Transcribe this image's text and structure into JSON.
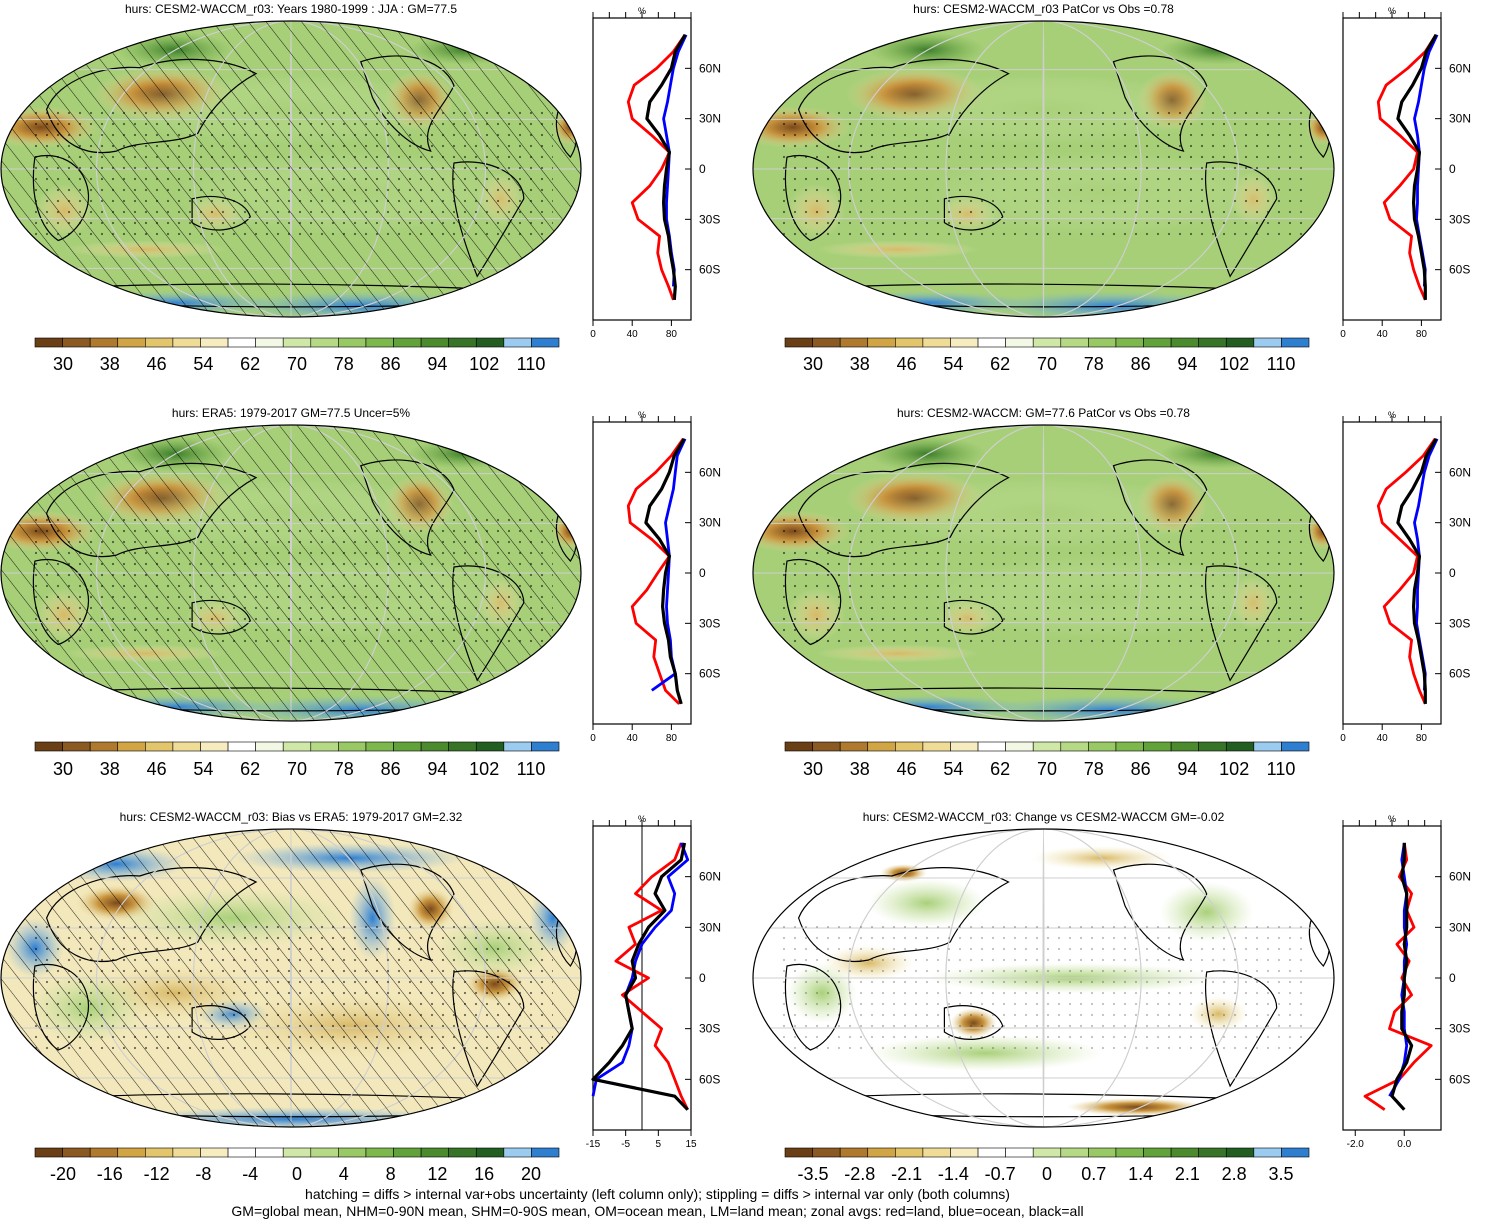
{
  "figure": {
    "variable": "hurs",
    "footnote_lines": [
      "hatching = diffs > internal var+obs uncertainty (left column only); stippling = diffs > internal var only (both columns)",
      "GM=global mean, NHM=0-90N mean, SHM=0-90S mean, OM=ocean mean, LM=land mean; zonal avgs: red=land, blue=ocean, black=all"
    ]
  },
  "colors": {
    "land": "#ff0000",
    "ocean": "#0000ff",
    "all": "#000000"
  },
  "chart_data": [
    {
      "type": "map",
      "title": "hurs: CESM2-WACCM_r03: Years 1980-1999 : JJA : GM=77.5",
      "hatching": true,
      "colorbar": {
        "labels": [
          "30",
          "38",
          "46",
          "54",
          "62",
          "70",
          "78",
          "86",
          "94",
          "102",
          "110"
        ],
        "palette": "abs"
      },
      "zonal": {
        "type": "line",
        "unit_label": "%",
        "xlim": [
          0,
          100
        ],
        "xticks": [
          0,
          40,
          80
        ],
        "xtick_labels": [
          "0",
          "40",
          "80"
        ],
        "ylim": [
          -90,
          90
        ],
        "ytick_labels": [
          "60N",
          "30N",
          "0",
          "30S",
          "60S"
        ],
        "lat": [
          80,
          70,
          60,
          50,
          40,
          30,
          20,
          10,
          0,
          -10,
          -20,
          -30,
          -40,
          -50,
          -60,
          -70,
          -78
        ],
        "series": [
          {
            "name": "land",
            "values": [
              94,
              82,
              65,
              42,
              36,
              40,
              60,
              78,
              70,
              58,
              40,
              46,
              68,
              66,
              70,
              77,
              82
            ]
          },
          {
            "name": "ocean",
            "values": [
              95,
              87,
              82,
              79,
              76,
              72,
              75,
              78,
              77,
              76,
              75,
              75,
              78,
              80,
              83,
              82,
              null
            ]
          },
          {
            "name": "all",
            "values": [
              94,
              84,
              80,
              70,
              58,
              55,
              68,
              78,
              75,
              73,
              72,
              73,
              77,
              79,
              82,
              84,
              83
            ]
          }
        ]
      }
    },
    {
      "type": "map",
      "title": "hurs: CESM2-WACCM_r03 PatCor vs Obs =0.78",
      "hatching": false,
      "colorbar": {
        "labels": [
          "30",
          "38",
          "46",
          "54",
          "62",
          "70",
          "78",
          "86",
          "94",
          "102",
          "110"
        ],
        "palette": "abs"
      },
      "zonal": {
        "type": "line",
        "unit_label": "%",
        "xlim": [
          0,
          100
        ],
        "xticks": [
          0,
          40,
          80
        ],
        "xtick_labels": [
          "0",
          "40",
          "80"
        ],
        "ylim": [
          -90,
          90
        ],
        "ytick_labels": [
          "60N",
          "30N",
          "0",
          "30S",
          "60S"
        ],
        "lat": [
          80,
          70,
          60,
          50,
          40,
          30,
          20,
          10,
          0,
          -10,
          -20,
          -30,
          -40,
          -50,
          -60,
          -70,
          -78
        ],
        "series": [
          {
            "name": "land",
            "values": [
              95,
              84,
              66,
              44,
              36,
              38,
              58,
              76,
              72,
              58,
              42,
              48,
              70,
              68,
              72,
              78,
              84
            ]
          },
          {
            "name": "ocean",
            "values": [
              96,
              88,
              83,
              80,
              77,
              73,
              76,
              78,
              77,
              76,
              76,
              75,
              78,
              81,
              84,
              83,
              null
            ]
          },
          {
            "name": "all",
            "values": [
              95,
              85,
              80,
              71,
              60,
              56,
              68,
              78,
              76,
              73,
              72,
              73,
              77,
              80,
              83,
              84,
              84
            ]
          }
        ]
      }
    },
    {
      "type": "map",
      "title": "hurs: ERA5: 1979-2017 GM=77.5 Uncer=5%",
      "hatching": true,
      "colorbar": {
        "labels": [
          "30",
          "38",
          "46",
          "54",
          "62",
          "70",
          "78",
          "86",
          "94",
          "102",
          "110"
        ],
        "palette": "abs"
      },
      "zonal": {
        "type": "line",
        "unit_label": "%",
        "xlim": [
          0,
          100
        ],
        "xticks": [
          0,
          40,
          80
        ],
        "xtick_labels": [
          "0",
          "40",
          "80"
        ],
        "ylim": [
          -90,
          90
        ],
        "ytick_labels": [
          "60N",
          "30N",
          "0",
          "30S",
          "60S"
        ],
        "lat": [
          80,
          70,
          60,
          50,
          40,
          30,
          20,
          10,
          0,
          -10,
          -20,
          -30,
          -40,
          -50,
          -60,
          -70,
          -78
        ],
        "series": [
          {
            "name": "land",
            "values": [
              92,
              80,
              64,
              44,
              36,
              38,
              60,
              78,
              66,
              55,
              40,
              44,
              64,
              62,
              68,
              74,
              88
            ]
          },
          {
            "name": "ocean",
            "values": [
              94,
              86,
              84,
              82,
              78,
              74,
              76,
              78,
              77,
              76,
              75,
              76,
              79,
              80,
              84,
              60,
              null
            ]
          },
          {
            "name": "all",
            "values": [
              93,
              83,
              78,
              70,
              58,
              54,
              68,
              78,
              74,
              72,
              71,
              73,
              77,
              79,
              84,
              86,
              90
            ]
          }
        ]
      }
    },
    {
      "type": "map",
      "title": "hurs: CESM2-WACCM: GM=77.6 PatCor vs Obs =0.78",
      "hatching": false,
      "colorbar": {
        "labels": [
          "30",
          "38",
          "46",
          "54",
          "62",
          "70",
          "78",
          "86",
          "94",
          "102",
          "110"
        ],
        "palette": "abs"
      },
      "zonal": {
        "type": "line",
        "unit_label": "%",
        "xlim": [
          0,
          100
        ],
        "xticks": [
          0,
          40,
          80
        ],
        "xtick_labels": [
          "0",
          "40",
          "80"
        ],
        "ylim": [
          -90,
          90
        ],
        "ytick_labels": [
          "60N",
          "30N",
          "0",
          "30S",
          "60S"
        ],
        "lat": [
          80,
          70,
          60,
          50,
          40,
          30,
          20,
          10,
          0,
          -10,
          -20,
          -30,
          -40,
          -50,
          -60,
          -70,
          -78
        ],
        "series": [
          {
            "name": "land",
            "values": [
              94,
              82,
              64,
              44,
              36,
              40,
              58,
              76,
              72,
              58,
              42,
              48,
              70,
              68,
              72,
              78,
              84
            ]
          },
          {
            "name": "ocean",
            "values": [
              96,
              88,
              83,
              80,
              77,
              73,
              76,
              78,
              77,
              76,
              76,
              75,
              78,
              81,
              84,
              83,
              null
            ]
          },
          {
            "name": "all",
            "values": [
              95,
              85,
              80,
              71,
              60,
              56,
              68,
              78,
              76,
              73,
              72,
              73,
              77,
              80,
              83,
              84,
              84
            ]
          }
        ]
      }
    },
    {
      "type": "map",
      "title": "hurs: CESM2-WACCM_r03: Bias vs ERA5: 1979-2017 GM=2.32",
      "hatching": true,
      "colorbar": {
        "labels": [
          "-20",
          "-16",
          "-12",
          "-8",
          "-4",
          "0",
          "4",
          "8",
          "12",
          "16",
          "20"
        ],
        "palette": "diff"
      },
      "zonal": {
        "type": "line",
        "unit_label": "%",
        "xlim": [
          -15,
          15
        ],
        "xticks": [
          -15,
          -5,
          5,
          15
        ],
        "xtick_labels": [
          "-15",
          "-5",
          "5",
          "15"
        ],
        "zero_line": true,
        "ylim": [
          -90,
          90
        ],
        "ytick_labels": [
          "60N",
          "30N",
          "0",
          "30S",
          "60S"
        ],
        "lat": [
          80,
          70,
          60,
          50,
          40,
          30,
          20,
          10,
          0,
          -10,
          -20,
          -30,
          -40,
          -50,
          -60,
          -70,
          -78
        ],
        "series": [
          {
            "name": "land",
            "values": [
              12,
              10,
              3,
              -2,
              6,
              -4,
              -2,
              -8,
              2,
              -6,
              0,
              6,
              4,
              8,
              10,
              12,
              14
            ]
          },
          {
            "name": "ocean",
            "values": [
              12,
              14,
              8,
              10,
              9,
              4,
              0,
              -2,
              -3,
              -5,
              -4,
              -3,
              -4,
              -6,
              -14,
              -15,
              null
            ]
          },
          {
            "name": "all",
            "values": [
              13,
              12,
              6,
              4,
              7,
              2,
              -1,
              -3,
              -2,
              -5,
              -4,
              -3,
              -6,
              -10,
              -15,
              10,
              14
            ]
          }
        ]
      }
    },
    {
      "type": "map",
      "title": "hurs: CESM2-WACCM_r03: Change vs CESM2-WACCM GM=-0.02",
      "hatching": false,
      "colorbar": {
        "labels": [
          "-3.5",
          "-2.8",
          "-2.1",
          "-1.4",
          "-0.7",
          "0",
          "0.7",
          "1.4",
          "2.1",
          "2.8",
          "3.5"
        ],
        "palette": "diff"
      },
      "zonal": {
        "type": "line",
        "unit_label": "%",
        "xlim": [
          -2.5,
          1.5
        ],
        "xticks": [
          -2.0,
          0.0
        ],
        "xtick_labels": [
          "-2.0",
          "0.0"
        ],
        "ylim": [
          -90,
          90
        ],
        "ytick_labels": [
          "60N",
          "30N",
          "0",
          "30S",
          "60S"
        ],
        "lat": [
          80,
          70,
          60,
          50,
          40,
          30,
          20,
          10,
          0,
          -10,
          -20,
          -30,
          -40,
          -50,
          -60,
          -70,
          -78
        ],
        "series": [
          {
            "name": "land",
            "values": [
              0.0,
              0.1,
              -0.2,
              0.3,
              0.1,
              0.4,
              -0.3,
              0.2,
              -0.1,
              0.3,
              -0.4,
              -0.6,
              1.1,
              0.4,
              -0.2,
              -1.6,
              -0.8
            ]
          },
          {
            "name": "ocean",
            "values": [
              0.0,
              -0.1,
              0.0,
              0.1,
              0.0,
              0.0,
              0.1,
              0.0,
              0.0,
              -0.1,
              0.0,
              0.0,
              0.1,
              0.0,
              -0.2,
              -0.6,
              null
            ]
          },
          {
            "name": "all",
            "values": [
              0.0,
              0.0,
              -0.1,
              0.1,
              0.1,
              0.1,
              0.0,
              0.1,
              0.0,
              0.0,
              -0.1,
              -0.1,
              0.3,
              0.1,
              -0.3,
              -0.5,
              0.0
            ]
          }
        ]
      }
    }
  ]
}
